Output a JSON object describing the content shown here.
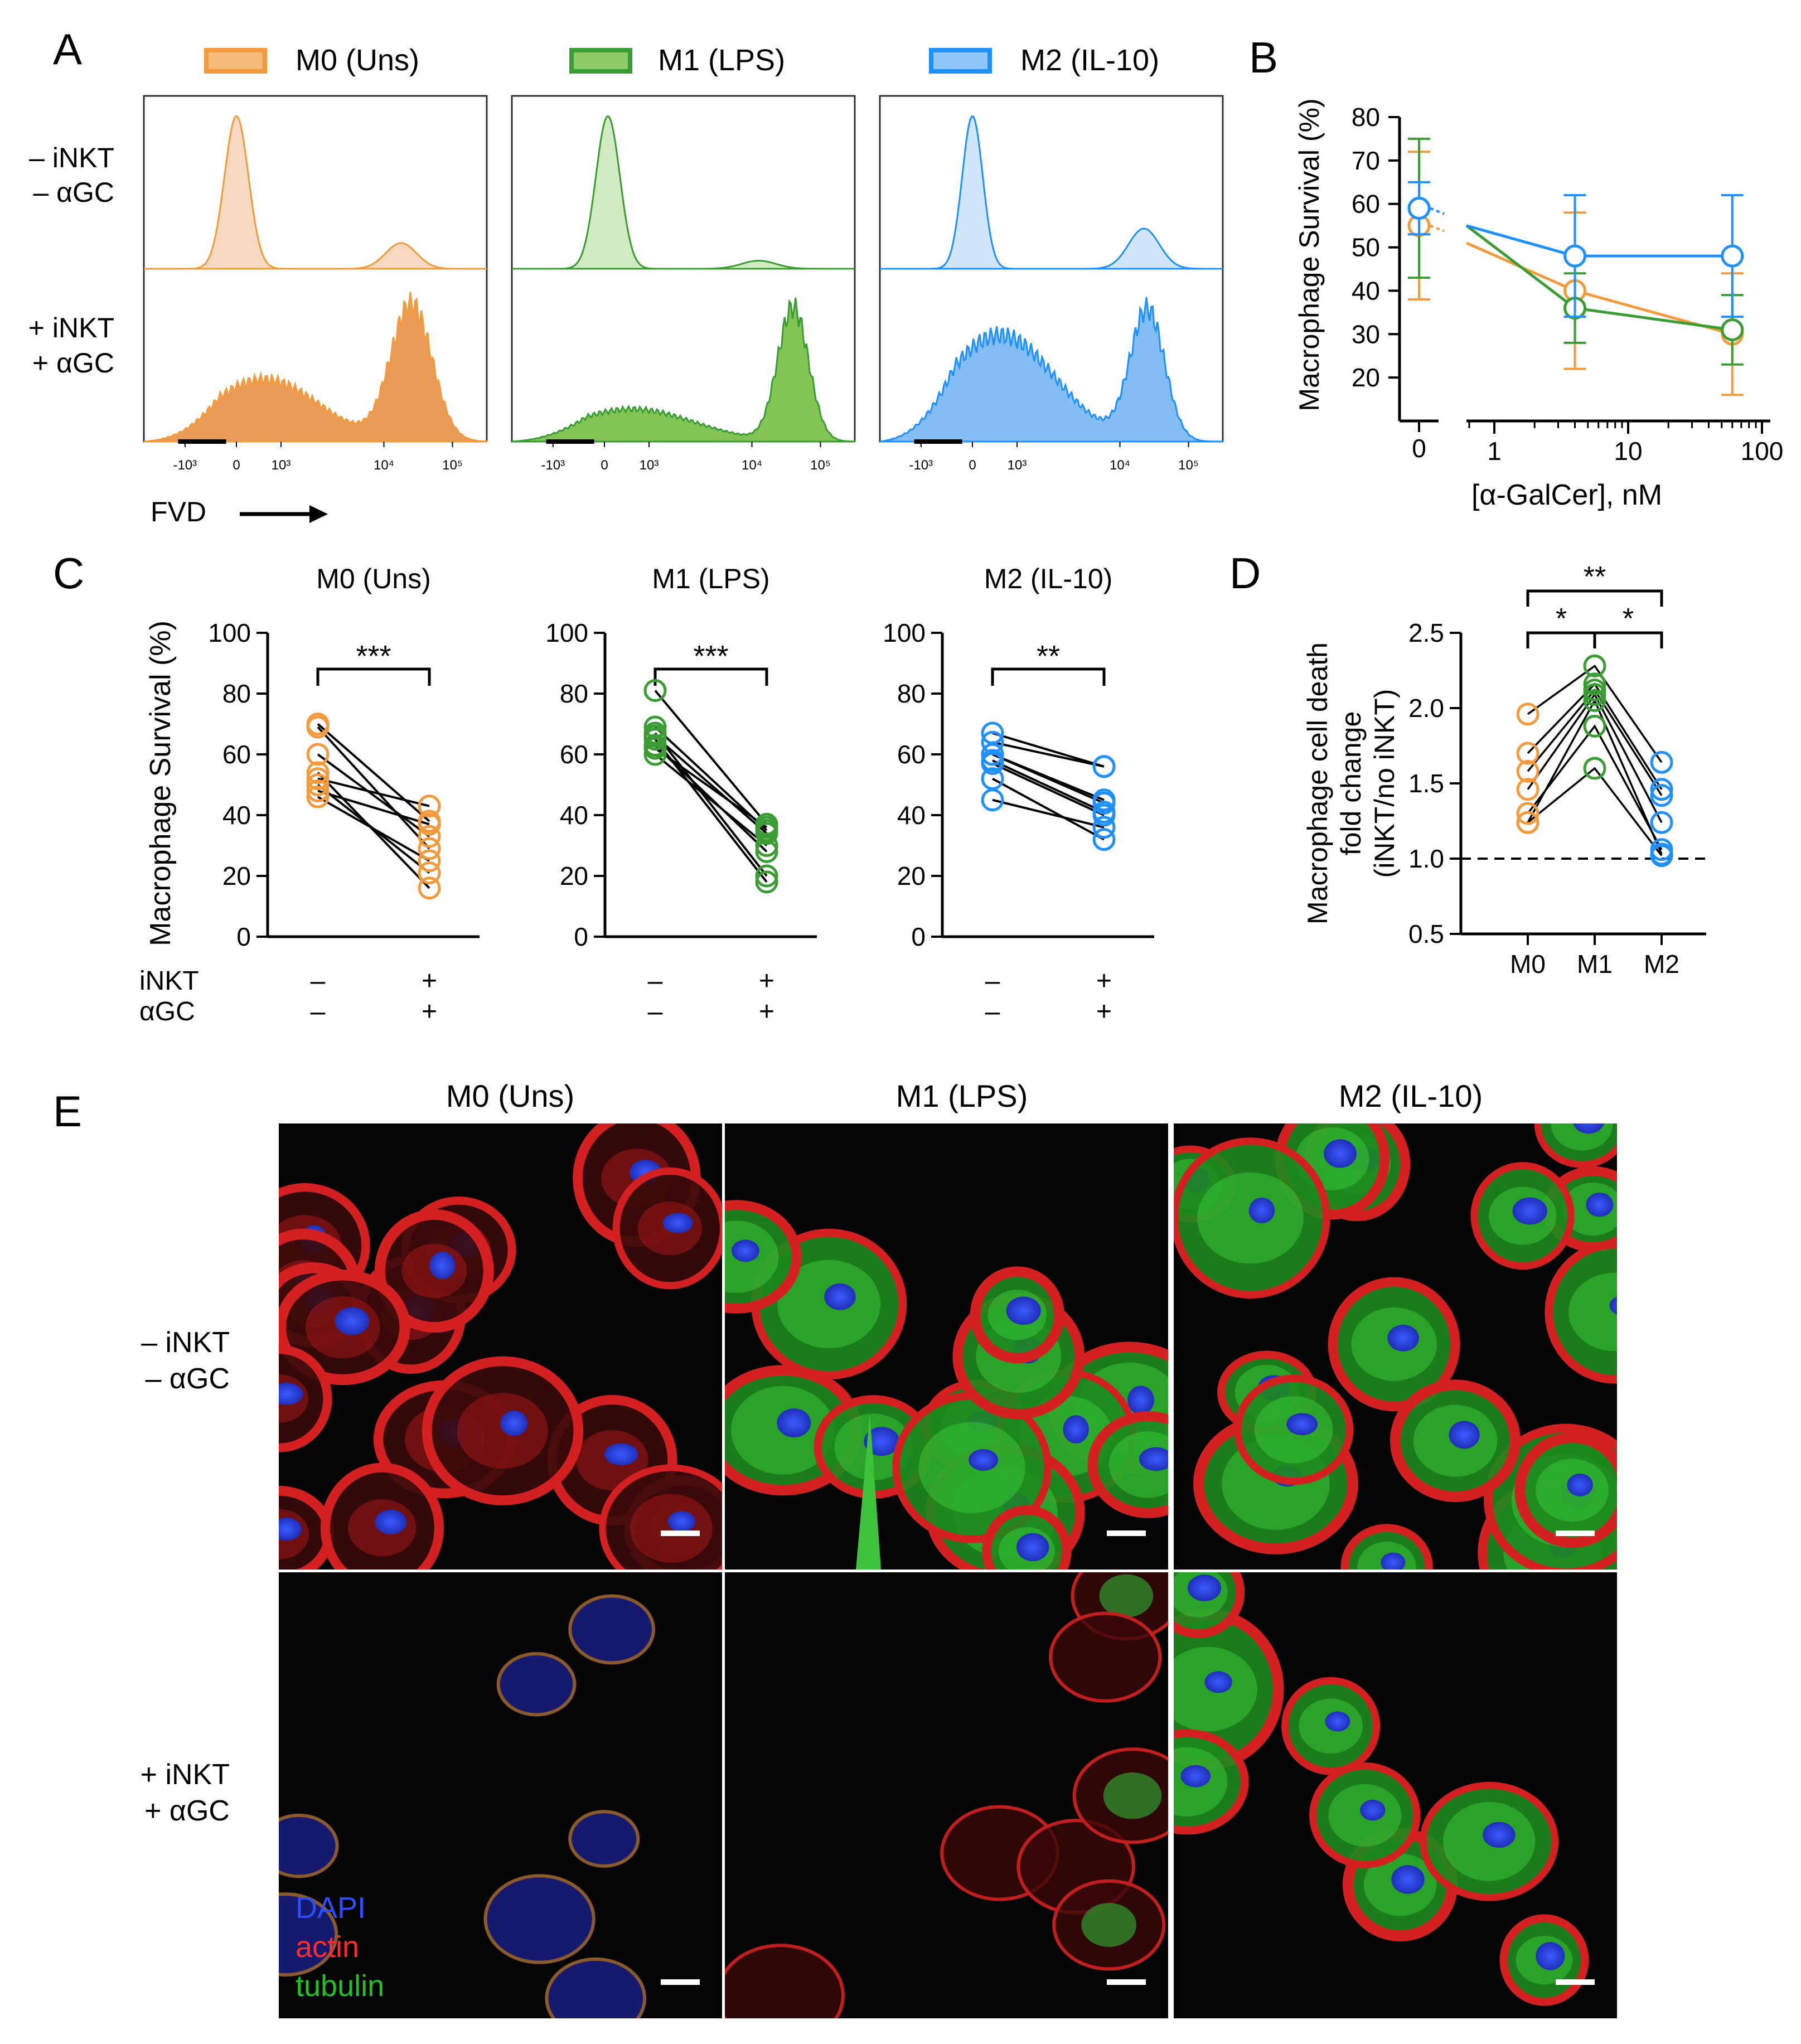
{
  "panel_labels": {
    "A": "A",
    "B": "B",
    "C": "C",
    "D": "D",
    "E": "E"
  },
  "colors": {
    "m0": "#f39a3c",
    "m1": "#3a9d33",
    "m2": "#1e90ff",
    "m0_fill": "#e8954d",
    "m1_fill": "#7cc24c",
    "m2_fill": "#7db8f3"
  },
  "panel_a": {
    "legend": [
      "M0 (Uns)",
      "M1 (LPS)",
      "M2 (IL-10)"
    ],
    "row_labels": [
      [
        "– iNKT",
        "– αGC"
      ],
      [
        "+ iNKT",
        "+ αGC"
      ]
    ],
    "tick_labels": [
      "-10³",
      "0",
      "10³",
      "10⁴",
      "10⁵"
    ],
    "xlabel": "FVD"
  },
  "chart_data": [
    {
      "id": "B",
      "type": "line",
      "title": "",
      "xlabel": "[α-GalCer], nM",
      "ylabel": "Macrophage Survival (%)",
      "x": [
        0,
        4,
        60
      ],
      "x_tick_labels": [
        "0",
        "1",
        "10",
        "100"
      ],
      "ylim": [
        10,
        80
      ],
      "y_ticks": [
        20,
        30,
        40,
        50,
        60,
        70,
        80
      ],
      "series": [
        {
          "name": "M0 (Uns)",
          "values": [
            55,
            40,
            30
          ],
          "err": [
            17,
            18,
            14
          ]
        },
        {
          "name": "M1 (LPS)",
          "values": [
            59,
            36,
            31
          ],
          "err": [
            16,
            8,
            8
          ]
        },
        {
          "name": "M2 (IL-10)",
          "values": [
            59,
            48,
            48
          ],
          "err": [
            6,
            14,
            14
          ]
        }
      ]
    },
    {
      "id": "C",
      "type": "scatter",
      "ylabel": "Macrophage Survival (%)",
      "ylim": [
        0,
        100
      ],
      "y_ticks": [
        0,
        20,
        40,
        60,
        80,
        100
      ],
      "x_row_labels": [
        "iNKT",
        "αGC"
      ],
      "x_conditions": [
        [
          "–",
          "–"
        ],
        [
          "+",
          "+"
        ]
      ],
      "subplots": [
        {
          "title": "M0 (Uns)",
          "significance": "***",
          "before": [
            69,
            60,
            54,
            52,
            50,
            48,
            46,
            70
          ],
          "after": [
            29,
            33,
            16,
            43,
            21,
            37,
            25,
            38
          ]
        },
        {
          "title": "M1 (LPS)",
          "significance": "***",
          "before": [
            81,
            69,
            67,
            65,
            63,
            60,
            66,
            62
          ],
          "after": [
            37,
            35,
            20,
            18,
            28,
            30,
            34,
            36
          ]
        },
        {
          "title": "M2 (IL-10)",
          "significance": "**",
          "before": [
            67,
            64,
            60,
            57,
            52,
            45,
            60,
            58
          ],
          "after": [
            56,
            56,
            44,
            40,
            32,
            36,
            45,
            41
          ]
        }
      ]
    },
    {
      "id": "D",
      "type": "scatter",
      "ylabel_lines": [
        "Macrophage cell death",
        "fold change",
        "(iNKT/no iNKT)"
      ],
      "categories": [
        "M0",
        "M1",
        "M2"
      ],
      "ylim": [
        0.5,
        2.5
      ],
      "y_ticks": [
        0.5,
        1.0,
        1.5,
        2.0,
        2.5
      ],
      "y_tick_labels": [
        "0.5",
        "1.0",
        "1.5",
        "2.0",
        "2.5"
      ],
      "reference_line": 1.0,
      "significance": [
        "*",
        "*",
        "**"
      ],
      "series": [
        {
          "name": "M0",
          "values": [
            1.96,
            1.7,
            1.58,
            1.46,
            1.3,
            1.24,
            1.24
          ]
        },
        {
          "name": "M1",
          "values": [
            2.28,
            2.16,
            2.12,
            2.09,
            1.88,
            1.6,
            2.05
          ]
        },
        {
          "name": "M2",
          "values": [
            1.64,
            1.46,
            1.42,
            1.24,
            1.06,
            1.02,
            1.03
          ]
        }
      ]
    }
  ],
  "panel_e": {
    "col_titles": [
      "M0 (Uns)",
      "M1 (LPS)",
      "M2 (IL-10)"
    ],
    "row_labels": [
      [
        "– iNKT",
        "– αGC"
      ],
      [
        "+ iNKT",
        "+ αGC"
      ]
    ],
    "stain_legend": [
      "DAPI",
      "actin",
      "tubulin"
    ]
  }
}
